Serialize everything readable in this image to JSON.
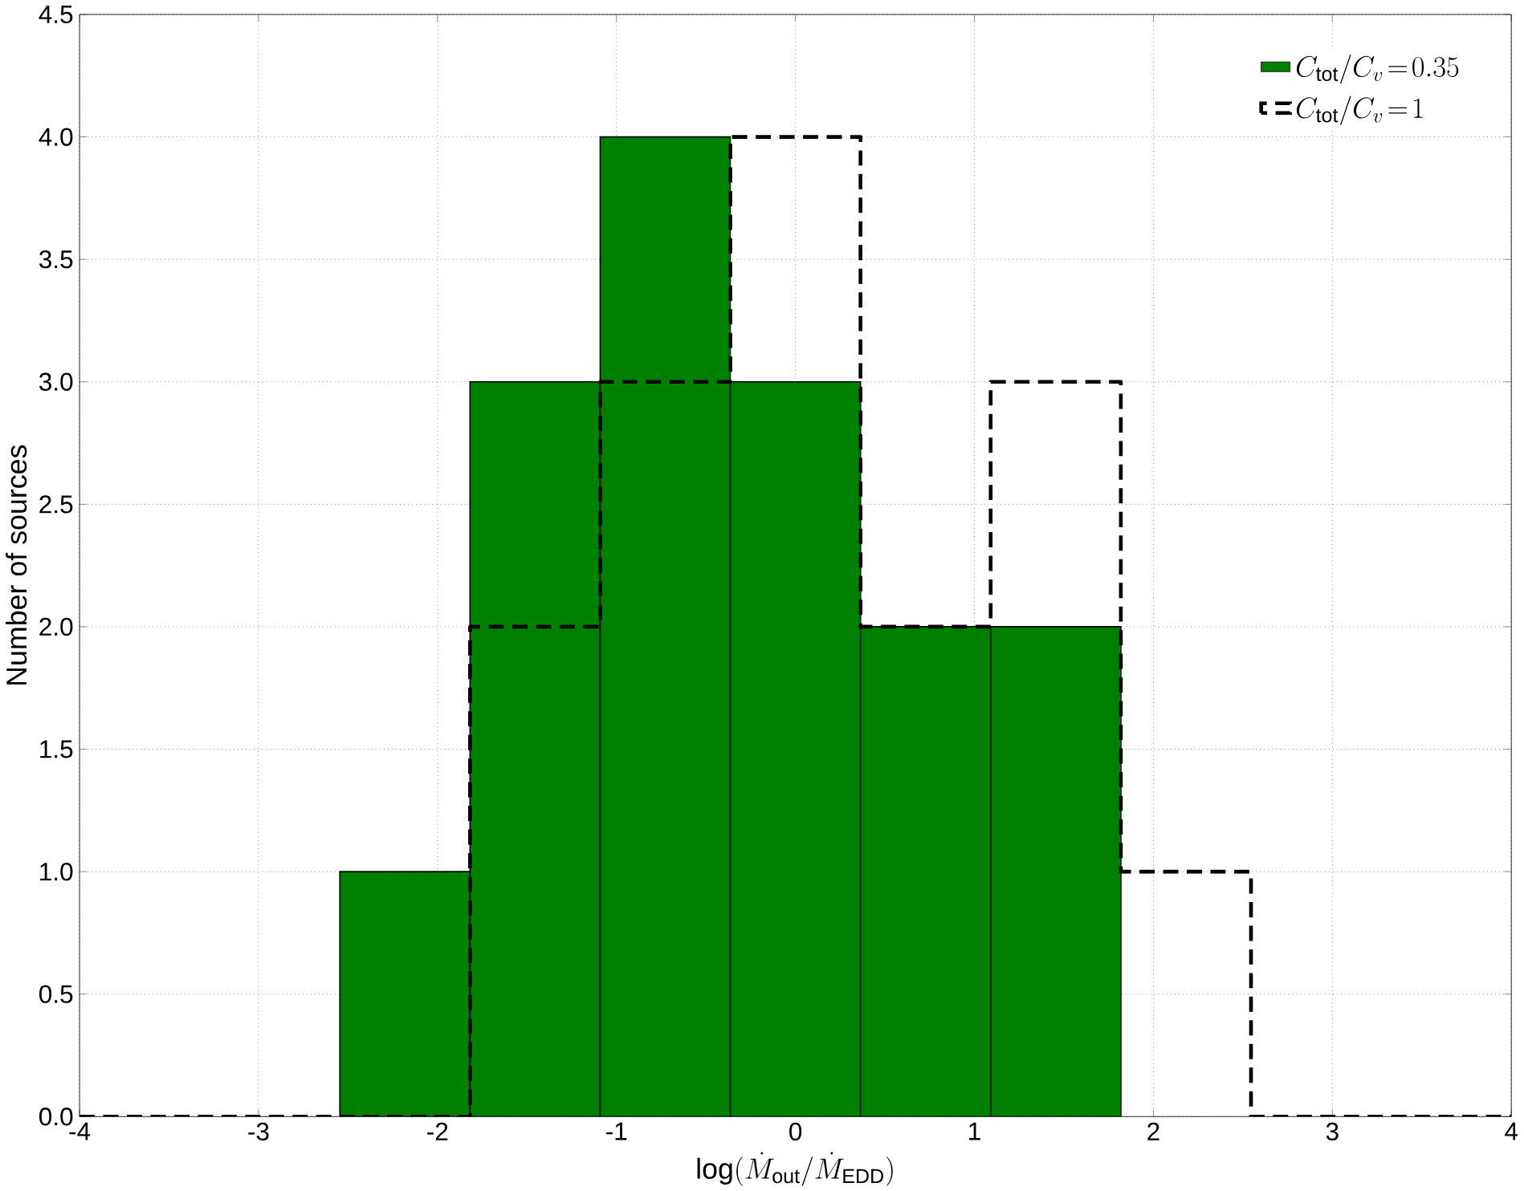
{
  "chart_data": {
    "type": "histogram",
    "xlabel": "\\log(\\dot{M}_{\\rm out}/\\dot{M}_{\\rm EDD})",
    "ylabel": "Number of sources",
    "bins": [
      -4,
      -3.2727,
      -2.5455,
      -1.8182,
      -1.0909,
      -0.3636,
      0.3636,
      1.0909,
      1.8182,
      2.5455,
      3.2727,
      4
    ],
    "series": [
      {
        "name": "C_{\\rm tot}/C_{v}\\!=\\!0.35",
        "color": "#008000",
        "values": [
          0,
          0,
          1,
          3,
          4,
          3,
          2,
          2,
          0,
          0,
          0
        ]
      },
      {
        "name": "C_{\\rm tot}/C_{v}\\!=\\!1",
        "color": "#000000",
        "line_style": "dashed",
        "values": [
          0,
          0,
          0,
          2,
          3,
          4,
          2,
          3,
          1,
          0,
          0
        ]
      }
    ],
    "xlim": [
      -4,
      4
    ],
    "xticks": [
      -4,
      -3,
      -2,
      -1,
      0,
      1,
      2,
      3,
      4
    ],
    "ylim": [
      0,
      4.5
    ],
    "yticks": [
      {
        "value": 0,
        "label": "0.0"
      },
      {
        "value": 0.5,
        "label": "0.5"
      },
      {
        "value": 1,
        "label": "1.0"
      },
      {
        "value": 1.5,
        "label": "1.5"
      },
      {
        "value": 2,
        "label": "2.0"
      },
      {
        "value": 2.5,
        "label": "2.5"
      },
      {
        "value": 3,
        "label": "3.0"
      },
      {
        "value": 3.5,
        "label": "3.5"
      },
      {
        "value": 4,
        "label": "4.0"
      },
      {
        "value": 4.5,
        "label": "4.5"
      }
    ],
    "grid": true,
    "legend": "top right"
  }
}
